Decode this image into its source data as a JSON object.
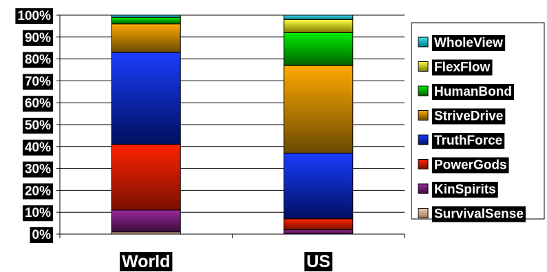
{
  "chart_data": {
    "type": "bar",
    "stacked": true,
    "title": "",
    "xlabel": "",
    "ylabel": "",
    "ylim": [
      0,
      100
    ],
    "y_tick_labels": [
      "0%",
      "10%",
      "20%",
      "30%",
      "40%",
      "50%",
      "60%",
      "70%",
      "80%",
      "90%",
      "100%"
    ],
    "categories": [
      "World",
      "US"
    ],
    "grid": true,
    "legend_position": "right",
    "series": [
      {
        "name": "SurvivalSense",
        "values": [
          1,
          0
        ],
        "color_top": "#f2cdb0",
        "color_bottom": "#a07858"
      },
      {
        "name": "KinSpirits",
        "values": [
          10,
          2
        ],
        "color_top": "#9a2a9a",
        "color_bottom": "#3c0a3c"
      },
      {
        "name": "PowerGods",
        "values": [
          30,
          5
        ],
        "color_top": "#ff2200",
        "color_bottom": "#7a1000"
      },
      {
        "name": "TruthForce",
        "values": [
          42,
          30
        ],
        "color_top": "#1a3cff",
        "color_bottom": "#001060"
      },
      {
        "name": "StriveDrive",
        "values": [
          13,
          40
        ],
        "color_top": "#ffaa00",
        "color_bottom": "#6a4a00"
      },
      {
        "name": "HumanBond",
        "values": [
          3,
          15
        ],
        "color_top": "#00ee00",
        "color_bottom": "#006000"
      },
      {
        "name": "FlexFlow",
        "values": [
          0,
          6
        ],
        "color_top": "#ffff40",
        "color_bottom": "#7a7a00"
      },
      {
        "name": "WholeView",
        "values": [
          1,
          2
        ],
        "color_top": "#40e0f0",
        "color_bottom": "#007888"
      }
    ]
  }
}
